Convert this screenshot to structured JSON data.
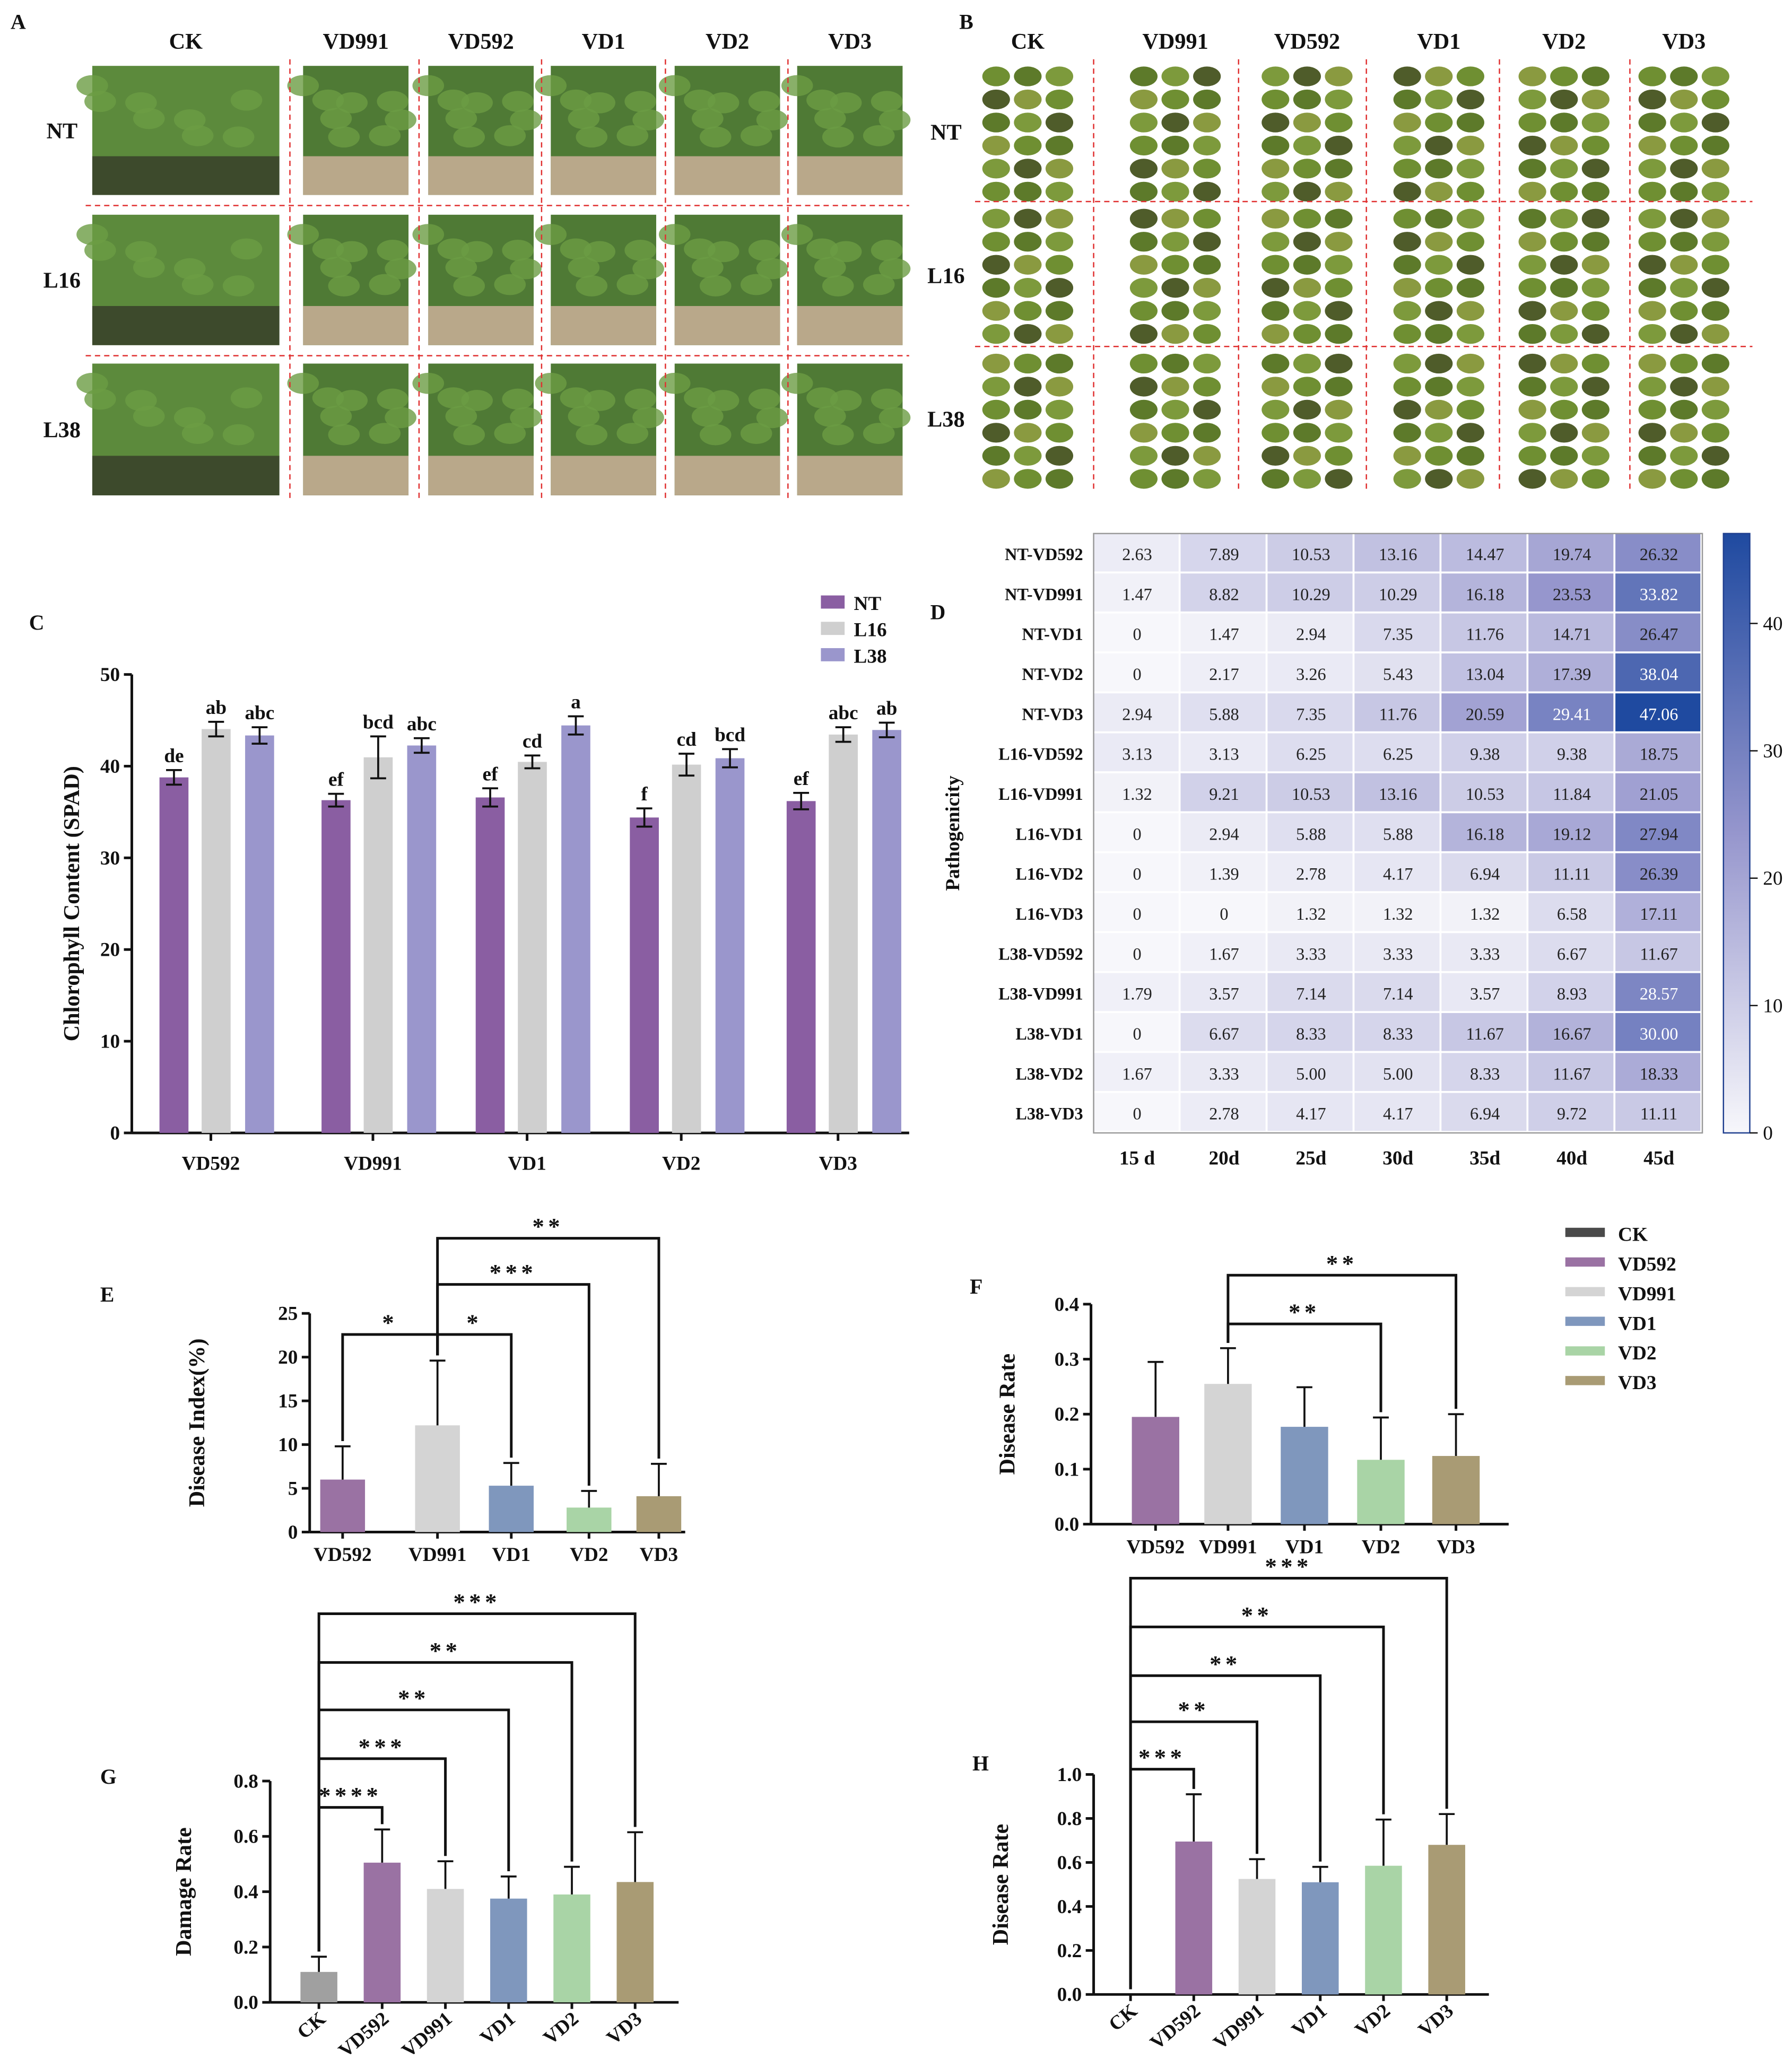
{
  "panel_labels": {
    "A": "A",
    "B": "B",
    "C": "C",
    "D": "D",
    "E": "E",
    "F": "F",
    "G": "G",
    "H": "H"
  },
  "photo_panels": {
    "A": {
      "columns": [
        "CK",
        "VD991",
        "VD592",
        "VD1",
        "VD2",
        "VD3"
      ],
      "rows": [
        "NT",
        "L16",
        "L38"
      ]
    },
    "B": {
      "columns": [
        "CK",
        "VD991",
        "VD592",
        "VD1",
        "VD2",
        "VD3"
      ],
      "rows": [
        "NT",
        "L16",
        "L38"
      ]
    }
  },
  "colors": {
    "NT": "#8a5ea2",
    "L16": "#cfcfcf",
    "L38": "#9a96cc",
    "CK": "#4a4a4a",
    "CK_bar": "#a0a0a0",
    "VD592": "#9a72a3",
    "VD991": "#d4d4d4",
    "VD1": "#7f97bd",
    "VD2": "#a9d4a6",
    "VD3": "#a99b74",
    "divider": "#e03030"
  },
  "chart_data": [
    {
      "id": "C",
      "type": "bar",
      "ylabel": "Chlorophyll Content (SPAD)",
      "ylim": [
        0,
        50
      ],
      "yticks": [
        0,
        10,
        20,
        30,
        40,
        50
      ],
      "categories": [
        "VD592",
        "VD991",
        "VD1",
        "VD2",
        "VD3"
      ],
      "legend": "top-right",
      "series": [
        {
          "name": "NT",
          "values": [
            39.0,
            36.5,
            36.8,
            34.6,
            36.4
          ],
          "errors": [
            0.8,
            0.7,
            1.0,
            1.0,
            0.9
          ],
          "letters": [
            "de",
            "ef",
            "ef",
            "f",
            "ef"
          ]
        },
        {
          "name": "L16",
          "values": [
            44.3,
            41.2,
            40.7,
            40.4,
            43.7
          ],
          "errors": [
            0.8,
            2.3,
            0.7,
            1.2,
            0.8
          ],
          "letters": [
            "ab",
            "bcd",
            "cd",
            "cd",
            "abc"
          ]
        },
        {
          "name": "L38",
          "values": [
            43.6,
            42.5,
            44.7,
            41.1,
            44.2
          ],
          "errors": [
            0.9,
            0.8,
            1.0,
            1.0,
            0.8
          ],
          "letters": [
            "abc",
            "abc",
            "a",
            "bcd",
            "ab"
          ]
        }
      ]
    },
    {
      "id": "D",
      "type": "heatmap",
      "ylabel": "Pathogenicity",
      "columns": [
        "15 d",
        "20d",
        "25d",
        "30d",
        "35d",
        "40d",
        "45d"
      ],
      "rows": [
        "NT-VD592",
        "NT-VD991",
        "NT-VD1",
        "NT-VD2",
        "NT-VD3",
        "L16-VD592",
        "L16-VD991",
        "L16-VD1",
        "L16-VD2",
        "L16-VD3",
        "L38-VD592",
        "L38-VD991",
        "L38-VD1",
        "L38-VD2",
        "L38-VD3"
      ],
      "values": [
        [
          "2.63",
          "7.89",
          "10.53",
          "13.16",
          "14.47",
          "19.74",
          "26.32"
        ],
        [
          "1.47",
          "8.82",
          "10.29",
          "10.29",
          "16.18",
          "23.53",
          "33.82"
        ],
        [
          "0",
          "1.47",
          "2.94",
          "7.35",
          "11.76",
          "14.71",
          "26.47"
        ],
        [
          "0",
          "2.17",
          "3.26",
          "5.43",
          "13.04",
          "17.39",
          "38.04"
        ],
        [
          "2.94",
          "5.88",
          "7.35",
          "11.76",
          "20.59",
          "29.41",
          "47.06"
        ],
        [
          "3.13",
          "3.13",
          "6.25",
          "6.25",
          "9.38",
          "9.38",
          "18.75"
        ],
        [
          "1.32",
          "9.21",
          "10.53",
          "13.16",
          "10.53",
          "11.84",
          "21.05"
        ],
        [
          "0",
          "2.94",
          "5.88",
          "5.88",
          "16.18",
          "19.12",
          "27.94"
        ],
        [
          "0",
          "1.39",
          "2.78",
          "4.17",
          "6.94",
          "11.11",
          "26.39"
        ],
        [
          "0",
          "0",
          "1.32",
          "1.32",
          "1.32",
          "6.58",
          "17.11"
        ],
        [
          "0",
          "1.67",
          "3.33",
          "3.33",
          "3.33",
          "6.67",
          "11.67"
        ],
        [
          "1.79",
          "3.57",
          "7.14",
          "7.14",
          "3.57",
          "8.93",
          "28.57"
        ],
        [
          "0",
          "6.67",
          "8.33",
          "8.33",
          "11.67",
          "16.67",
          "30.00"
        ],
        [
          "1.67",
          "3.33",
          "5.00",
          "5.00",
          "8.33",
          "11.67",
          "18.33"
        ],
        [
          "0",
          "2.78",
          "4.17",
          "4.17",
          "6.94",
          "9.72",
          "11.11"
        ]
      ],
      "colorbar": {
        "range": [
          0,
          47.06
        ],
        "ticks": [
          0,
          10,
          20,
          30,
          40
        ],
        "low": "#f7f7fb",
        "high": "#1f4aa0"
      }
    },
    {
      "id": "E",
      "type": "bar",
      "ylabel": "Disease Index(%)",
      "ylim": [
        0,
        25
      ],
      "yticks": [
        0,
        5,
        10,
        15,
        20,
        25
      ],
      "categories": [
        "VD592",
        "VD991",
        "VD1",
        "VD2",
        "VD3"
      ],
      "values": [
        6.0,
        12.2,
        5.3,
        2.8,
        4.1
      ],
      "errors": [
        3.8,
        7.4,
        2.6,
        1.9,
        3.7
      ],
      "significance": [
        [
          "VD592",
          "VD991",
          "*"
        ],
        [
          "VD991",
          "VD1",
          "*"
        ],
        [
          "VD991",
          "VD2",
          "***"
        ],
        [
          "VD991",
          "VD3",
          "**"
        ]
      ]
    },
    {
      "id": "F",
      "type": "bar",
      "ylabel": "Disease Rate",
      "ylim": [
        0,
        0.4
      ],
      "yticks": [
        "0.0",
        "0.1",
        "0.2",
        "0.3",
        "0.4"
      ],
      "categories": [
        "VD592",
        "VD991",
        "VD1",
        "VD2",
        "VD3"
      ],
      "values": [
        0.195,
        0.255,
        0.177,
        0.117,
        0.124
      ],
      "errors": [
        0.1,
        0.065,
        0.072,
        0.077,
        0.076
      ],
      "significance": [
        [
          "VD991",
          "VD2",
          "**"
        ],
        [
          "VD991",
          "VD3",
          "**"
        ]
      ],
      "legend": {
        "position": "top-right",
        "entries": [
          "CK",
          "VD592",
          "VD991",
          "VD1",
          "VD2",
          "VD3"
        ]
      }
    },
    {
      "id": "G",
      "type": "bar",
      "ylabel": "Damage Rate",
      "ylim": [
        0,
        0.8
      ],
      "yticks": [
        "0.0",
        "0.2",
        "0.4",
        "0.6",
        "0.8"
      ],
      "categories": [
        "CK",
        "VD592",
        "VD991",
        "VD1",
        "VD2",
        "VD3"
      ],
      "values": [
        0.11,
        0.505,
        0.41,
        0.375,
        0.39,
        0.435
      ],
      "errors": [
        0.055,
        0.12,
        0.1,
        0.08,
        0.1,
        0.18
      ],
      "significance": [
        [
          "CK",
          "VD592",
          "****"
        ],
        [
          "CK",
          "VD991",
          "***"
        ],
        [
          "CK",
          "VD1",
          "**"
        ],
        [
          "CK",
          "VD2",
          "**"
        ],
        [
          "CK",
          "VD3",
          "***"
        ]
      ]
    },
    {
      "id": "H",
      "type": "bar",
      "ylabel": "Disease Rate",
      "ylim": [
        0,
        1.0
      ],
      "yticks": [
        "0.0",
        "0.2",
        "0.4",
        "0.6",
        "0.8",
        "1.0"
      ],
      "categories": [
        "CK",
        "VD592",
        "VD991",
        "VD1",
        "VD2",
        "VD3"
      ],
      "values": [
        0,
        0.695,
        0.525,
        0.51,
        0.585,
        0.68
      ],
      "errors": [
        0,
        0.215,
        0.09,
        0.07,
        0.21,
        0.14
      ],
      "significance": [
        [
          "CK",
          "VD592",
          "***"
        ],
        [
          "CK",
          "VD991",
          "**"
        ],
        [
          "CK",
          "VD1",
          "**"
        ],
        [
          "CK",
          "VD2",
          "**"
        ],
        [
          "CK",
          "VD3",
          "***"
        ]
      ]
    }
  ]
}
